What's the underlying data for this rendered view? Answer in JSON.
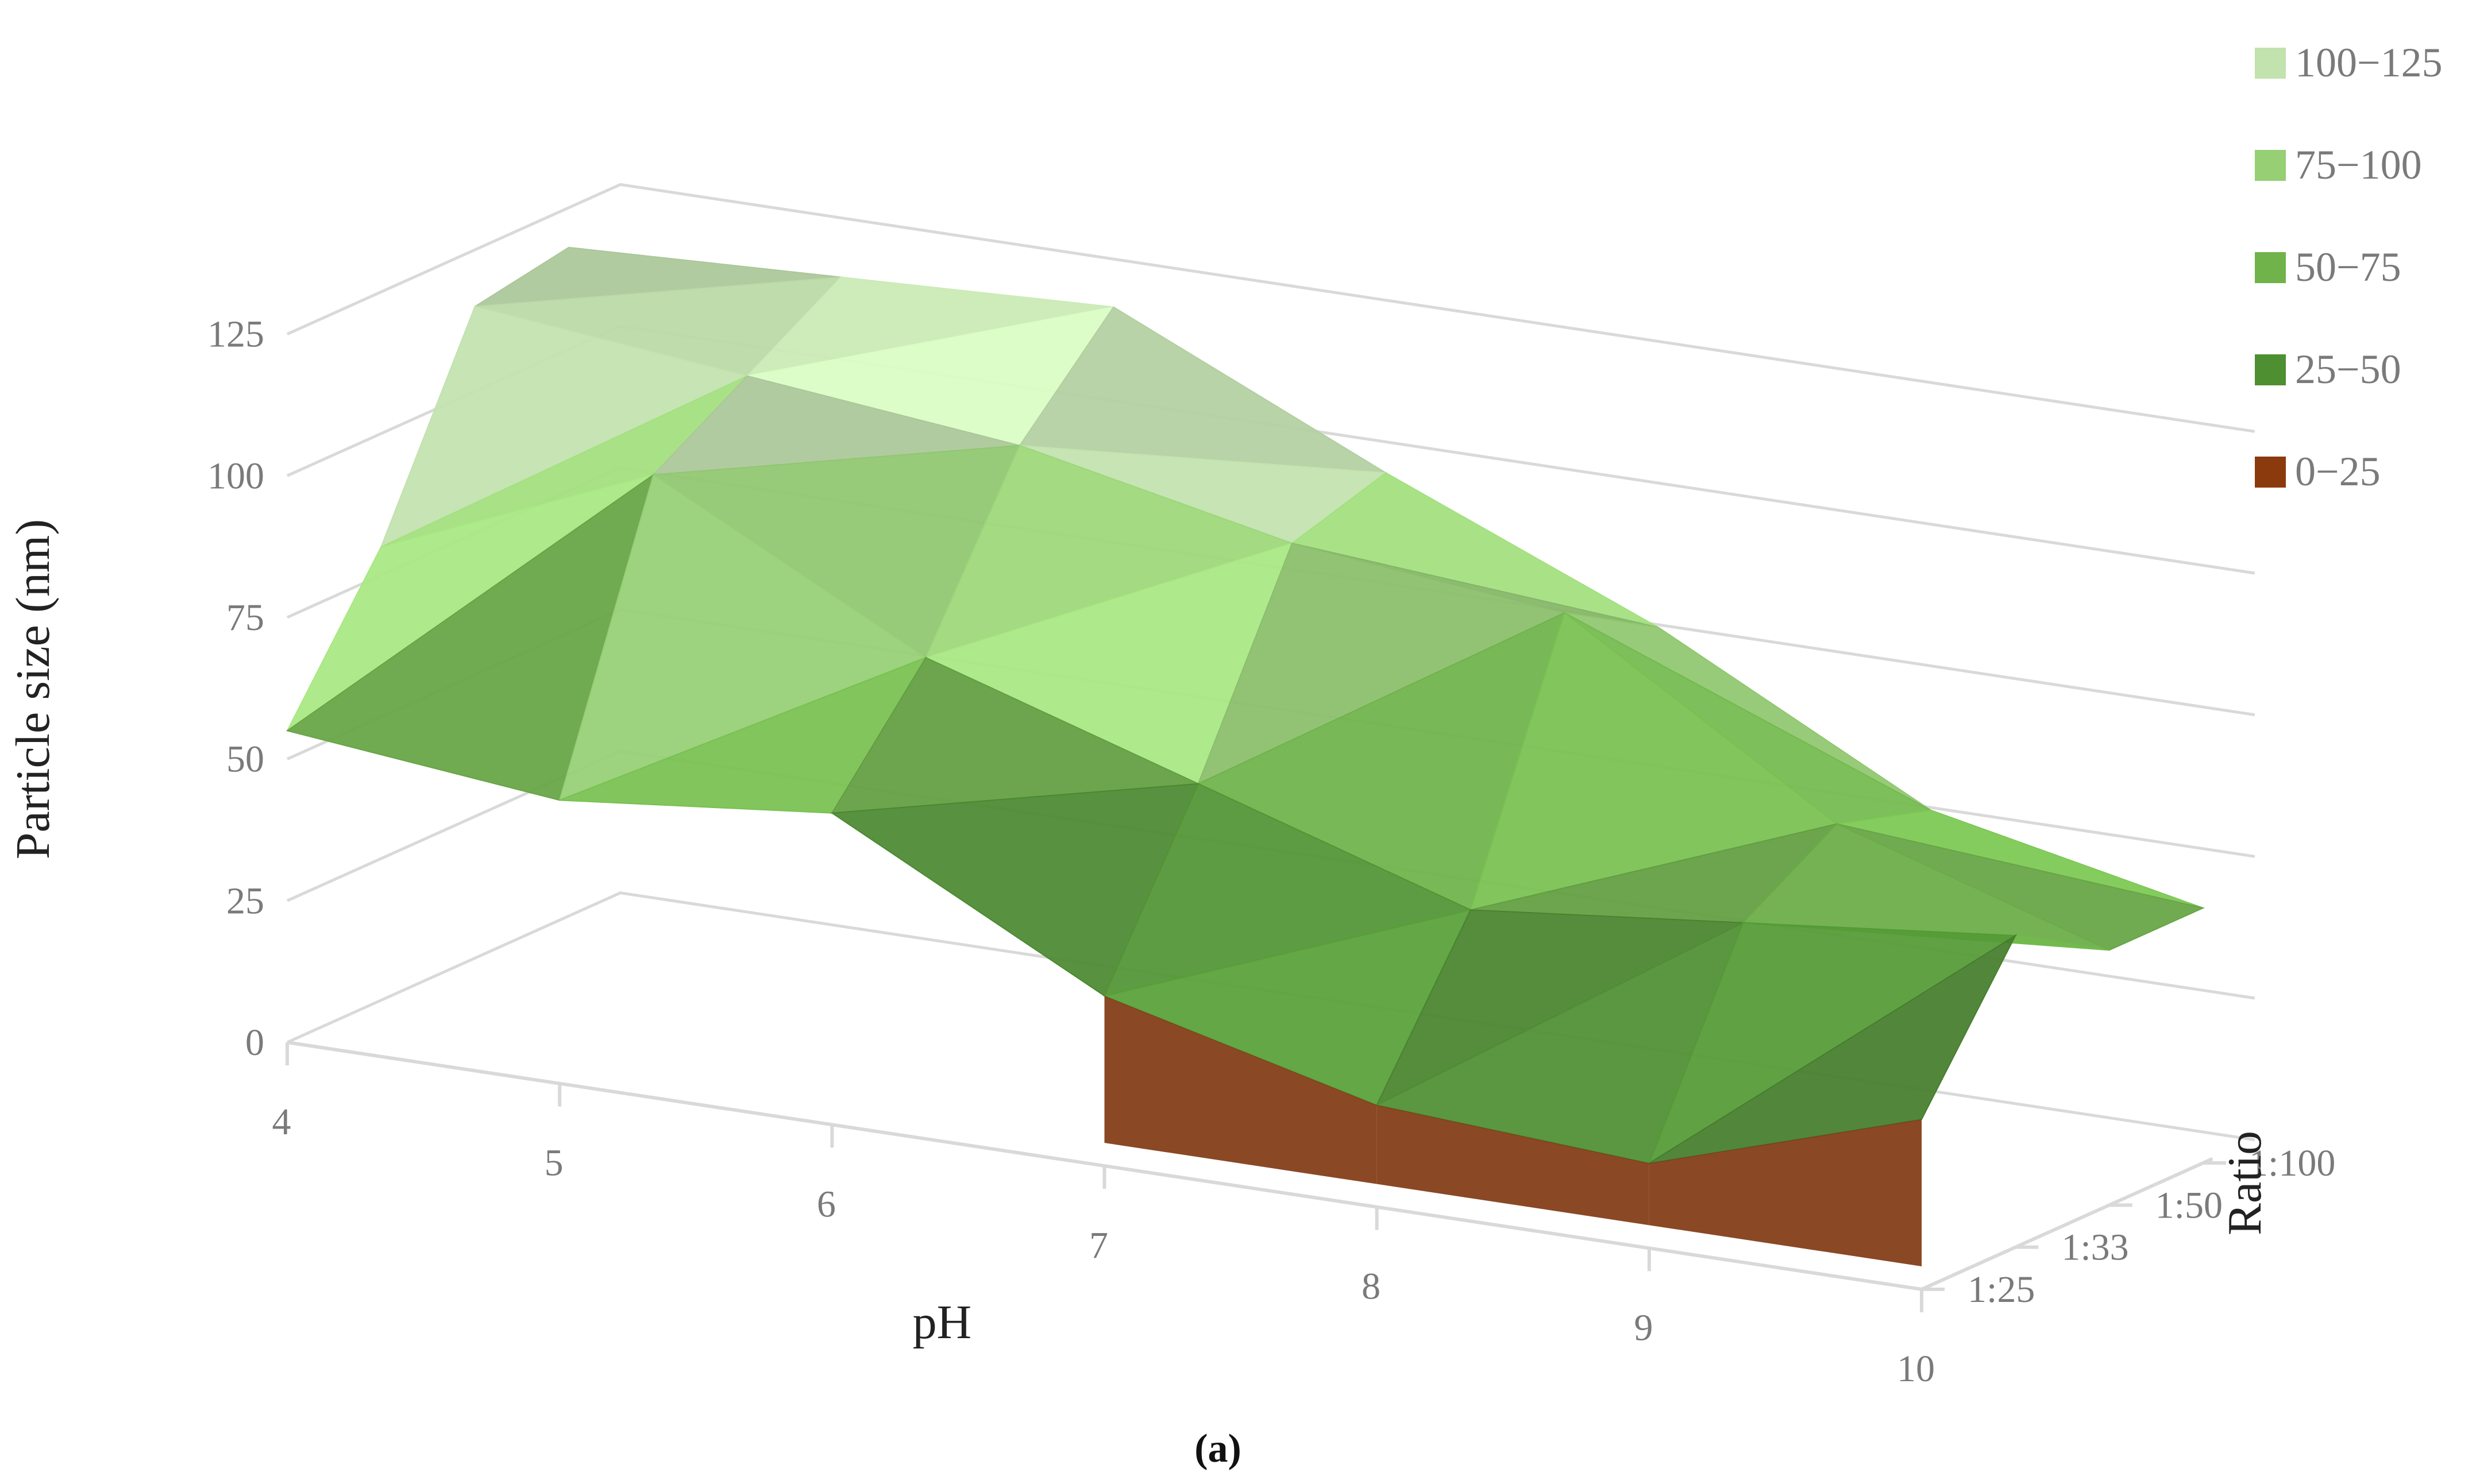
{
  "chart_data": {
    "type": "surface",
    "subtitle": "(a)",
    "xlabel": "pH",
    "ylabel": "Particle size (nm)",
    "zlabel": "Ratio",
    "x": [
      4,
      5,
      6,
      7,
      8,
      9,
      10
    ],
    "ratios": [
      "1:25",
      "1:33",
      "1:50",
      "1:100"
    ],
    "ylim": [
      0,
      125
    ],
    "yticks": [
      0,
      25,
      50,
      75,
      100,
      125
    ],
    "grid": true,
    "legend_position": "top-right",
    "legend": [
      {
        "label": "100−125",
        "color": "#c2e2ae"
      },
      {
        "label": "75−100",
        "color": "#96cf74"
      },
      {
        "label": "50−75",
        "color": "#6fb34a"
      },
      {
        "label": "25−50",
        "color": "#4e8f32"
      },
      {
        "label": "0−25",
        "color": "#8b3a0e"
      }
    ],
    "series": [
      {
        "name": "1:25",
        "values": [
          55,
          50,
          55,
          30,
          18,
          15,
          30
        ]
      },
      {
        "name": "1:33",
        "values": [
          80,
          100,
          75,
          60,
          45,
          50,
          55
        ]
      },
      {
        "name": "1:50",
        "values": [
          115,
          110,
          105,
          95,
          90,
          60,
          45
        ]
      },
      {
        "name": "1:100",
        "values": [
          118,
          120,
          122,
          100,
          80,
          55,
          45
        ]
      }
    ]
  }
}
